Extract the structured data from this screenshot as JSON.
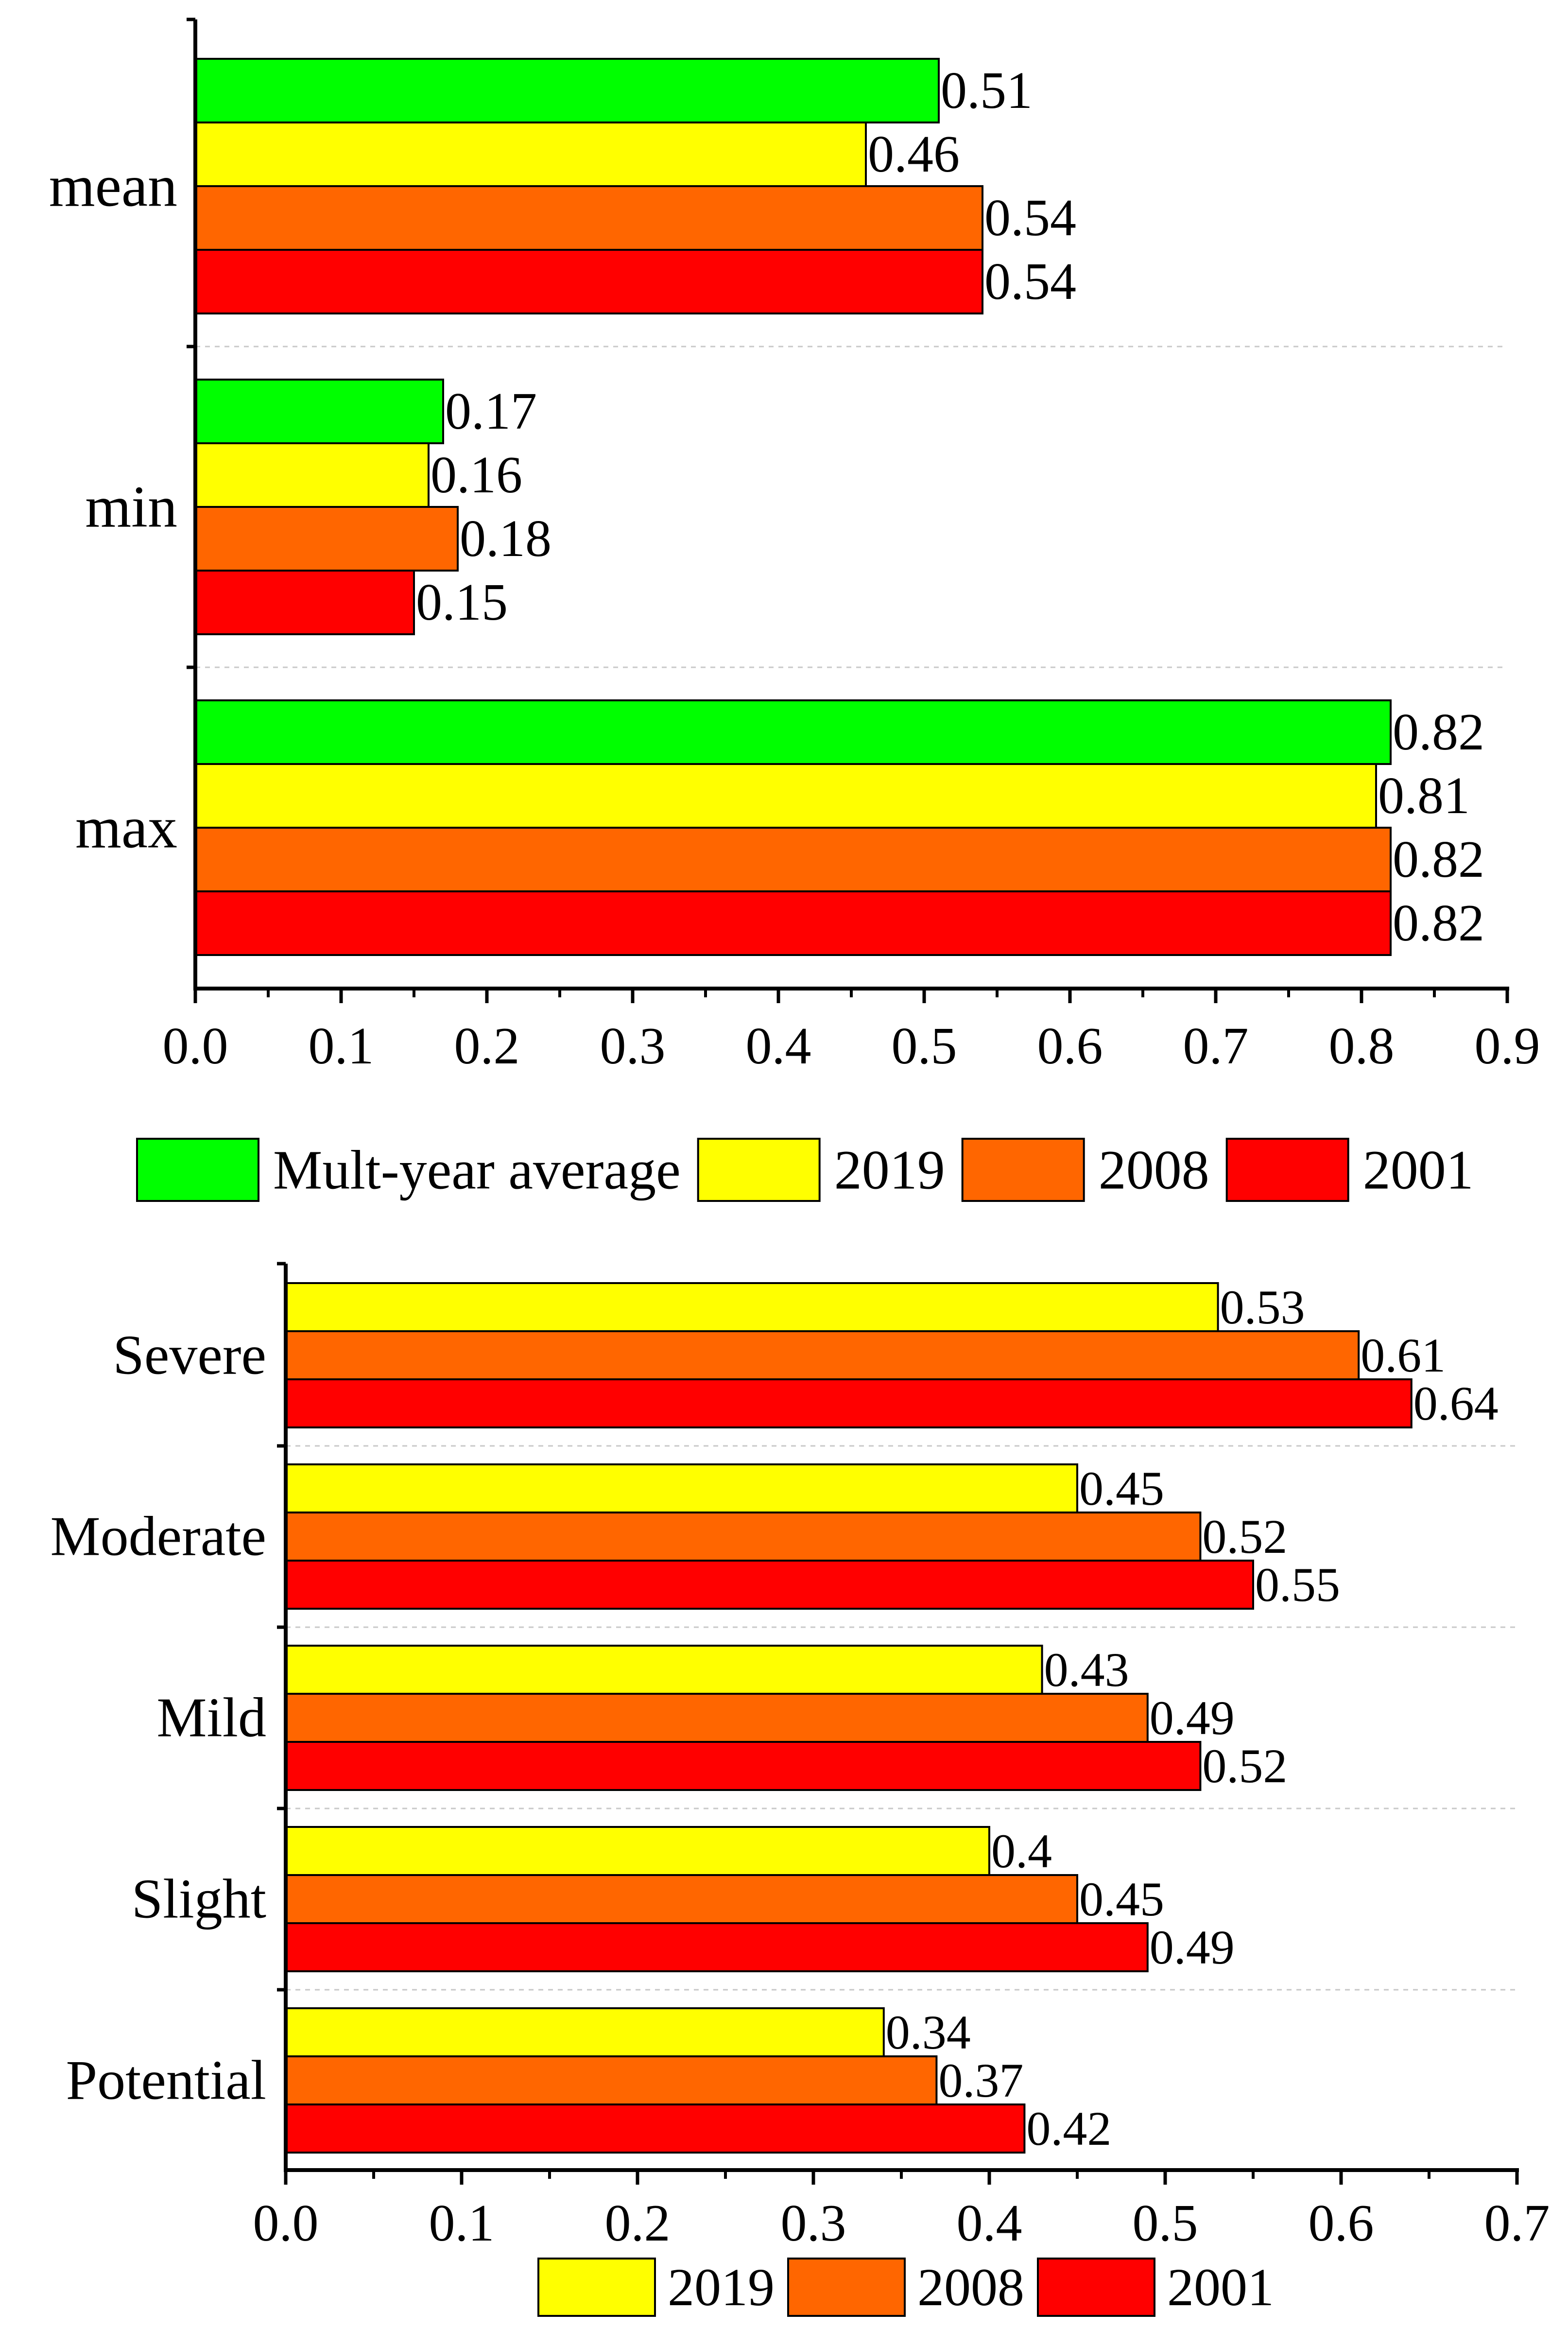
{
  "colors": {
    "Mult-year average": "#00ff00",
    "2019": "#ffff00",
    "2008": "#ff6600",
    "2001": "#ff0000"
  },
  "chart_data": [
    {
      "type": "bar",
      "orientation": "horizontal",
      "categories": [
        "mean",
        "min",
        "max"
      ],
      "series": [
        {
          "name": "Mult-year average",
          "values": [
            0.51,
            0.17,
            0.82
          ],
          "labels": [
            "0.51",
            "0.17",
            "0.82"
          ]
        },
        {
          "name": "2019",
          "values": [
            0.46,
            0.16,
            0.81
          ],
          "labels": [
            "0.46",
            "0.16",
            "0.81"
          ]
        },
        {
          "name": "2008",
          "values": [
            0.54,
            0.18,
            0.82
          ],
          "labels": [
            "0.54",
            "0.18",
            "0.82"
          ]
        },
        {
          "name": "2001",
          "values": [
            0.54,
            0.15,
            0.82
          ],
          "labels": [
            "0.54",
            "0.15",
            "0.82"
          ]
        }
      ],
      "xlim": [
        0,
        0.9
      ],
      "xticks": [
        "0.0",
        "0.1",
        "0.2",
        "0.3",
        "0.4",
        "0.5",
        "0.6",
        "0.7",
        "0.8",
        "0.9"
      ],
      "legend": [
        "Mult-year average",
        "2019",
        "2008",
        "2001"
      ],
      "legend_position": "bottom",
      "grid": "horizontal dashed separators"
    },
    {
      "type": "bar",
      "orientation": "horizontal",
      "categories": [
        "Severe",
        "Moderate",
        "Mild",
        "Slight",
        "Potential"
      ],
      "series": [
        {
          "name": "2019",
          "values": [
            0.53,
            0.45,
            0.43,
            0.4,
            0.34
          ],
          "labels": [
            "0.53",
            "0.45",
            "0.43",
            "0.4",
            "0.34"
          ]
        },
        {
          "name": "2008",
          "values": [
            0.61,
            0.52,
            0.49,
            0.45,
            0.37
          ],
          "labels": [
            "0.61",
            "0.52",
            "0.49",
            "0.45",
            "0.37"
          ]
        },
        {
          "name": "2001",
          "values": [
            0.64,
            0.55,
            0.52,
            0.49,
            0.42
          ],
          "labels": [
            "0.64",
            "0.55",
            "0.52",
            "0.49",
            "0.42"
          ]
        }
      ],
      "xlim": [
        0,
        0.7
      ],
      "xticks": [
        "0.0",
        "0.1",
        "0.2",
        "0.3",
        "0.4",
        "0.5",
        "0.6",
        "0.7"
      ],
      "legend": [
        "2019",
        "2008",
        "2001"
      ],
      "legend_position": "bottom",
      "grid": "horizontal dashed separators"
    }
  ]
}
